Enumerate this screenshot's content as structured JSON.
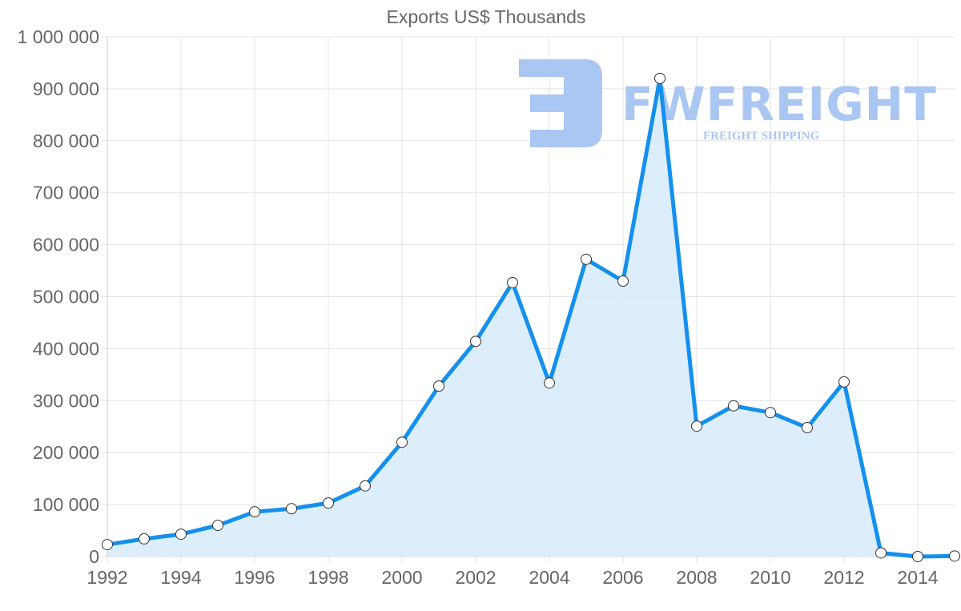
{
  "chart_data": {
    "type": "area",
    "title": "Exports US$ Thousands",
    "xlabel": "",
    "ylabel": "",
    "x": [
      1992,
      1993,
      1994,
      1995,
      1996,
      1997,
      1998,
      1999,
      2000,
      2001,
      2002,
      2003,
      2004,
      2005,
      2006,
      2007,
      2008,
      2009,
      2010,
      2011,
      2012,
      2013,
      2014,
      2015
    ],
    "series": [
      {
        "name": "Exports US$ Thousands",
        "values": [
          23000,
          34000,
          43000,
          60000,
          86000,
          92000,
          103000,
          136000,
          220000,
          328000,
          414000,
          527000,
          334000,
          572000,
          530000,
          920000,
          251000,
          290000,
          277000,
          248000,
          336000,
          7000,
          0,
          1000
        ],
        "color": "#1490ee",
        "fill": "#d8ebfc"
      }
    ],
    "ylim": [
      0,
      1000000
    ],
    "yticks": [
      "0",
      "100 000",
      "200 000",
      "300 000",
      "400 000",
      "500 000",
      "600 000",
      "700 000",
      "800 000",
      "900 000",
      "1 000 000"
    ],
    "xticks": [
      "1992",
      "1994",
      "1996",
      "1998",
      "2000",
      "2002",
      "2004",
      "2006",
      "2008",
      "2010",
      "2012",
      "2014"
    ],
    "grid": true,
    "legend": null
  },
  "watermark": {
    "brand": "FWFREIGHT",
    "tagline": "FREIGHT SHIPPING",
    "color": "#aac6f2"
  }
}
